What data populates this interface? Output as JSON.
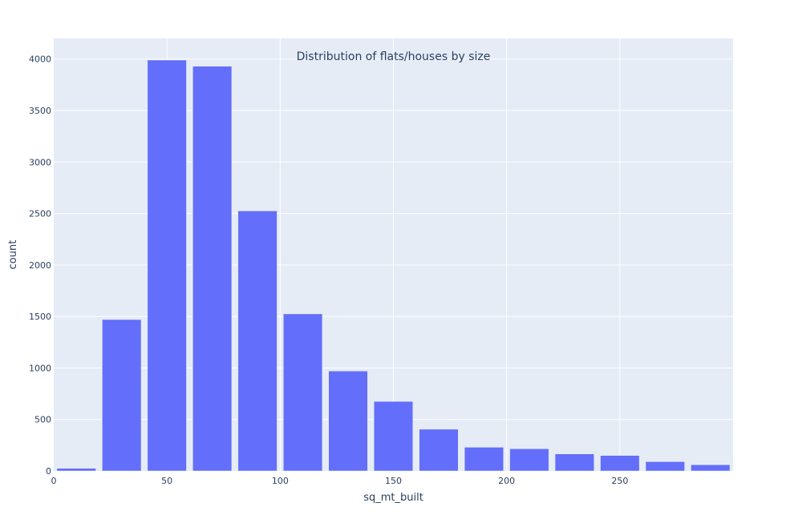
{
  "chart_data": {
    "type": "bar",
    "title": "Distribution of flats/houses by size",
    "xlabel": "sq_mt_built",
    "ylabel": "count",
    "bin_width": 20,
    "bins": [
      {
        "start": 0,
        "end": 20,
        "value": 25
      },
      {
        "start": 20,
        "end": 40,
        "value": 1470
      },
      {
        "start": 40,
        "end": 60,
        "value": 3990
      },
      {
        "start": 60,
        "end": 80,
        "value": 3930
      },
      {
        "start": 80,
        "end": 100,
        "value": 2525
      },
      {
        "start": 100,
        "end": 120,
        "value": 1525
      },
      {
        "start": 120,
        "end": 140,
        "value": 970
      },
      {
        "start": 140,
        "end": 160,
        "value": 675
      },
      {
        "start": 160,
        "end": 180,
        "value": 405
      },
      {
        "start": 180,
        "end": 200,
        "value": 230
      },
      {
        "start": 200,
        "end": 220,
        "value": 215
      },
      {
        "start": 220,
        "end": 240,
        "value": 165
      },
      {
        "start": 240,
        "end": 260,
        "value": 150
      },
      {
        "start": 260,
        "end": 280,
        "value": 90
      },
      {
        "start": 280,
        "end": 300,
        "value": 60
      }
    ],
    "xlim": [
      0,
      300
    ],
    "ylim": [
      0,
      4200
    ],
    "xticks": [
      0,
      50,
      100,
      150,
      200,
      250
    ],
    "yticks": [
      0,
      500,
      1000,
      1500,
      2000,
      2500,
      3000,
      3500,
      4000
    ],
    "grid": true,
    "colors": {
      "bar": "#636efa",
      "plot_bg": "#e5ecf6",
      "grid": "#ffffff",
      "text": "#2a3f5f"
    }
  }
}
